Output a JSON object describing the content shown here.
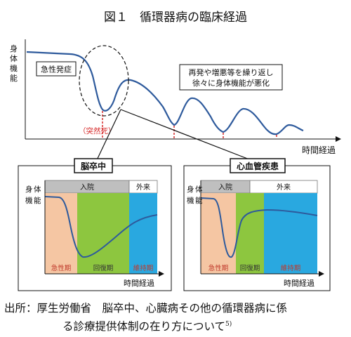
{
  "figure": {
    "title": "図１　循環器病の臨床経過",
    "main_chart": {
      "y_label_chars": [
        "身",
        "体",
        "機",
        "能"
      ],
      "x_label": "時間経過",
      "acute_label": "急性発症",
      "sudden_death_label": "（突然死）",
      "relapse_note_line1": "再発や増悪等を繰り返し",
      "relapse_note_line2": "徐々に身体機能が悪化"
    },
    "stroke_panel": {
      "title": "脳卒中",
      "phase_header_inpatient": "入院",
      "phase_header_outpatient": "外来",
      "y_label_chars": [
        "身",
        "体",
        "機",
        "能"
      ],
      "x_label": "時間経過",
      "phases": [
        "急性期",
        "回復期",
        "維持期"
      ],
      "colors": {
        "acute": "#f5c6a3",
        "recovery": "#8dc63f",
        "maintenance": "#29a8e0"
      }
    },
    "cardio_panel": {
      "title": "心血管疾患",
      "phase_header_inpatient": "入院",
      "phase_header_outpatient": "外来",
      "y_label_chars": [
        "身",
        "体",
        "機",
        "能"
      ],
      "x_label": "時間経過",
      "phases": [
        "急性期",
        "回復期",
        "維持期"
      ],
      "colors": {
        "acute": "#f5c6a3",
        "recovery": "#8dc63f",
        "maintenance": "#29a8e0"
      }
    },
    "caption_line1": "出所：厚生労働省　脳卒中、心臓病その他の循環器病に係",
    "caption_line2": "る診療提供体制の在り方について",
    "caption_ref": "5)"
  }
}
